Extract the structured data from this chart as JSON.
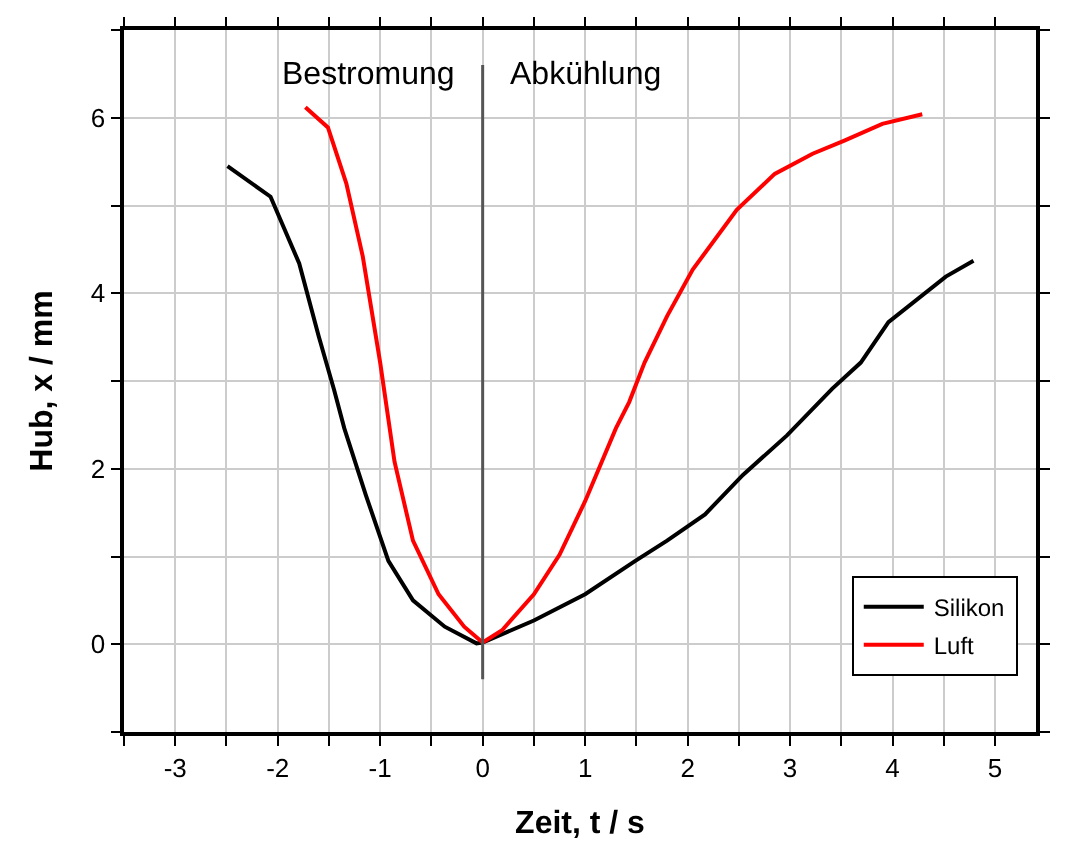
{
  "chart_data": {
    "type": "line",
    "xlabel": "Zeit, t / s",
    "ylabel": "Hub, x / mm",
    "xlim": [
      -3.5,
      5.4
    ],
    "ylim": [
      -1,
      7
    ],
    "xticks": [
      {
        "value": -3.5,
        "label": null
      },
      -3,
      {
        "value": -2.5,
        "label": null
      },
      -2,
      {
        "value": -1.5,
        "label": null
      },
      -1,
      {
        "value": -0.5,
        "label": null
      },
      0,
      {
        "value": 0.5,
        "label": null
      },
      1,
      {
        "value": 1.5,
        "label": null
      },
      2,
      {
        "value": 2.5,
        "label": null
      },
      3,
      {
        "value": 3.5,
        "label": null
      },
      4,
      {
        "value": 4.5,
        "label": null
      },
      5
    ],
    "yticks": [
      {
        "value": -1,
        "label": null
      },
      0,
      {
        "value": 1,
        "label": null
      },
      2,
      {
        "value": 3,
        "label": null
      },
      4,
      {
        "value": 5,
        "label": null
      },
      6,
      {
        "value": 7,
        "label": null
      }
    ],
    "grid": true,
    "legend": "bottom right",
    "marker": "none",
    "line_style": "solid",
    "series": [
      {
        "name": "Silikon",
        "color": "#000000",
        "x": [
          -2.49,
          -2.07,
          -1.79,
          -1.6,
          -1.45,
          -1.35,
          -1.14,
          -0.92,
          -0.68,
          -0.37,
          -0.06,
          0,
          0.5,
          1.0,
          1.49,
          1.8,
          2.17,
          2.54,
          2.97,
          3.41,
          3.69,
          3.96,
          4.52,
          4.79
        ],
        "values": [
          5.45,
          5.1,
          4.34,
          3.51,
          2.9,
          2.46,
          1.7,
          0.95,
          0.5,
          0.2,
          0.01,
          0.02,
          0.27,
          0.57,
          0.95,
          1.18,
          1.48,
          1.93,
          2.38,
          2.91,
          3.21,
          3.67,
          4.19,
          4.37
        ]
      },
      {
        "name": "Luft",
        "color": "#ff0000",
        "x": [
          -1.73,
          -1.51,
          -1.33,
          -1.17,
          -1.0,
          -0.86,
          -0.68,
          -0.43,
          -0.18,
          0,
          0.19,
          0.5,
          0.75,
          1.0,
          1.3,
          1.43,
          1.58,
          1.8,
          2.05,
          2.48,
          2.85,
          3.22,
          3.53,
          3.9,
          4.29
        ],
        "values": [
          6.12,
          5.89,
          5.25,
          4.42,
          3.21,
          2.08,
          1.18,
          0.57,
          0.2,
          0.02,
          0.16,
          0.57,
          1.02,
          1.63,
          2.46,
          2.76,
          3.21,
          3.74,
          4.27,
          4.95,
          5.36,
          5.59,
          5.74,
          5.93,
          6.04
        ]
      }
    ],
    "ref_lines": [
      {
        "axis": "x",
        "value": 0,
        "color": "#555555"
      }
    ],
    "annotations": [
      "Bestromung",
      "Abkühlung"
    ]
  }
}
